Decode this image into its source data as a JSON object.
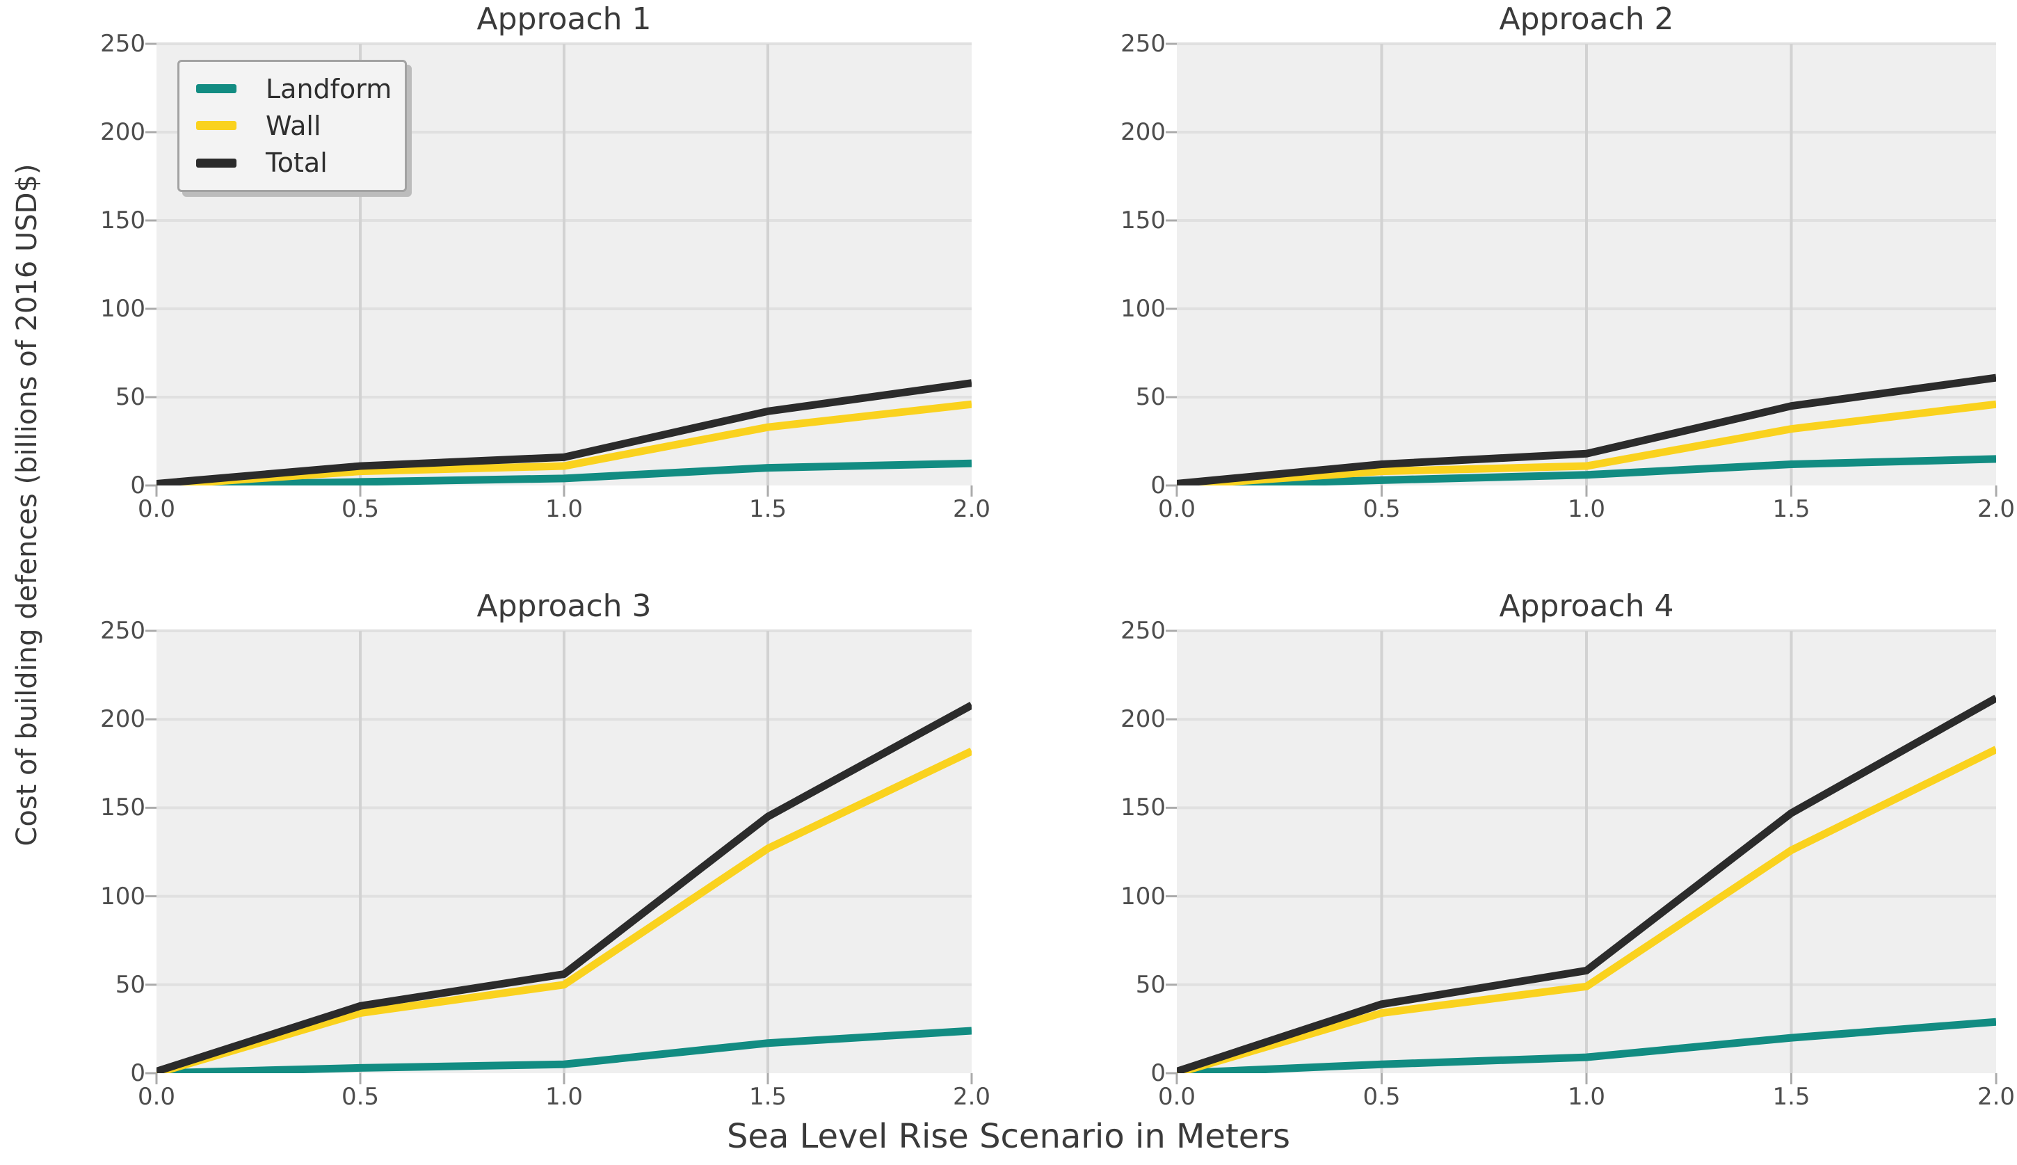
{
  "figure": {
    "xlabel": "Sea Level Rise Scenario in Meters",
    "ylabel": "Cost of building defences (billions of 2016 USD$)"
  },
  "palette": {
    "landform": "#128c82",
    "wall": "#fad21e",
    "total": "#2b2b2b",
    "panel_bg": "#efefef",
    "grid_horizontal": "#e0e0e0",
    "grid_vertical": "#d2d2d2",
    "tick_mark": "#ababab",
    "title_text": "#3a3a3a",
    "tick_text": "#4d4d4d",
    "legend_bg": "#f3f3f3",
    "legend_border": "#a2a2a2",
    "legend_shadow": "#bcbcbc"
  },
  "legend": {
    "position": "upper left of first subplot",
    "entries": [
      {
        "label": "Landform",
        "color": "#128c82"
      },
      {
        "label": "Wall",
        "color": "#fad21e"
      },
      {
        "label": "Total",
        "color": "#2b2b2b"
      }
    ]
  },
  "chart_data": [
    {
      "type": "line",
      "title": "Approach 1",
      "x": [
        0,
        0.5,
        1.0,
        1.5,
        2.0
      ],
      "xlim": [
        0,
        2
      ],
      "ylim": [
        0,
        250
      ],
      "xticks": [
        0,
        0.5,
        1.0,
        1.5,
        2.0
      ],
      "xtick_labels": [
        "0.0",
        "0.5",
        "1.0",
        "1.5",
        "2.0"
      ],
      "yticks": [
        0,
        50,
        100,
        150,
        200,
        250
      ],
      "ytick_labels": [
        "0",
        "50",
        "100",
        "150",
        "200",
        "250"
      ],
      "grid": true,
      "legend_visible": true,
      "series": [
        {
          "name": "Landform",
          "color": "#128c82",
          "values": [
            0,
            2,
            4,
            10,
            12.5
          ]
        },
        {
          "name": "Wall",
          "color": "#fad21e",
          "values": [
            0,
            8,
            11,
            33,
            46
          ]
        },
        {
          "name": "Total",
          "color": "#2b2b2b",
          "values": [
            1,
            11,
            16,
            42,
            58
          ]
        }
      ]
    },
    {
      "type": "line",
      "title": "Approach 2",
      "x": [
        0,
        0.5,
        1.0,
        1.5,
        2.0
      ],
      "xlim": [
        0,
        2
      ],
      "ylim": [
        0,
        250
      ],
      "xticks": [
        0,
        0.5,
        1.0,
        1.5,
        2.0
      ],
      "xtick_labels": [
        "0.0",
        "0.5",
        "1.0",
        "1.5",
        "2.0"
      ],
      "yticks": [
        0,
        50,
        100,
        150,
        200,
        250
      ],
      "ytick_labels": [
        "0",
        "50",
        "100",
        "150",
        "200",
        "250"
      ],
      "grid": true,
      "legend_visible": false,
      "series": [
        {
          "name": "Landform",
          "color": "#128c82",
          "values": [
            0,
            3,
            6,
            12,
            15
          ]
        },
        {
          "name": "Wall",
          "color": "#fad21e",
          "values": [
            0,
            8,
            11,
            32,
            46
          ]
        },
        {
          "name": "Total",
          "color": "#2b2b2b",
          "values": [
            1,
            12,
            18,
            45,
            61
          ]
        }
      ]
    },
    {
      "type": "line",
      "title": "Approach 3",
      "x": [
        0,
        0.5,
        1.0,
        1.5,
        2.0
      ],
      "xlim": [
        0,
        2
      ],
      "ylim": [
        0,
        250
      ],
      "xticks": [
        0,
        0.5,
        1.0,
        1.5,
        2.0
      ],
      "xtick_labels": [
        "0.0",
        "0.5",
        "1.0",
        "1.5",
        "2.0"
      ],
      "yticks": [
        0,
        50,
        100,
        150,
        200,
        250
      ],
      "ytick_labels": [
        "0",
        "50",
        "100",
        "150",
        "200",
        "250"
      ],
      "grid": true,
      "legend_visible": false,
      "series": [
        {
          "name": "Landform",
          "color": "#128c82",
          "values": [
            0,
            3,
            5,
            17,
            24
          ]
        },
        {
          "name": "Wall",
          "color": "#fad21e",
          "values": [
            0,
            34,
            50,
            127,
            182
          ]
        },
        {
          "name": "Total",
          "color": "#2b2b2b",
          "values": [
            1,
            38,
            56,
            145,
            208
          ]
        }
      ]
    },
    {
      "type": "line",
      "title": "Approach 4",
      "x": [
        0,
        0.5,
        1.0,
        1.5,
        2.0
      ],
      "xlim": [
        0,
        2
      ],
      "ylim": [
        0,
        250
      ],
      "xticks": [
        0,
        0.5,
        1.0,
        1.5,
        2.0
      ],
      "xtick_labels": [
        "0.0",
        "0.5",
        "1.0",
        "1.5",
        "2.0"
      ],
      "yticks": [
        0,
        50,
        100,
        150,
        200,
        250
      ],
      "ytick_labels": [
        "0",
        "50",
        "100",
        "150",
        "200",
        "250"
      ],
      "grid": true,
      "legend_visible": false,
      "series": [
        {
          "name": "Landform",
          "color": "#128c82",
          "values": [
            0,
            5,
            9,
            20,
            29
          ]
        },
        {
          "name": "Wall",
          "color": "#fad21e",
          "values": [
            0,
            34,
            49,
            126,
            183
          ]
        },
        {
          "name": "Total",
          "color": "#2b2b2b",
          "values": [
            1,
            39,
            58,
            147,
            212
          ]
        }
      ]
    }
  ]
}
